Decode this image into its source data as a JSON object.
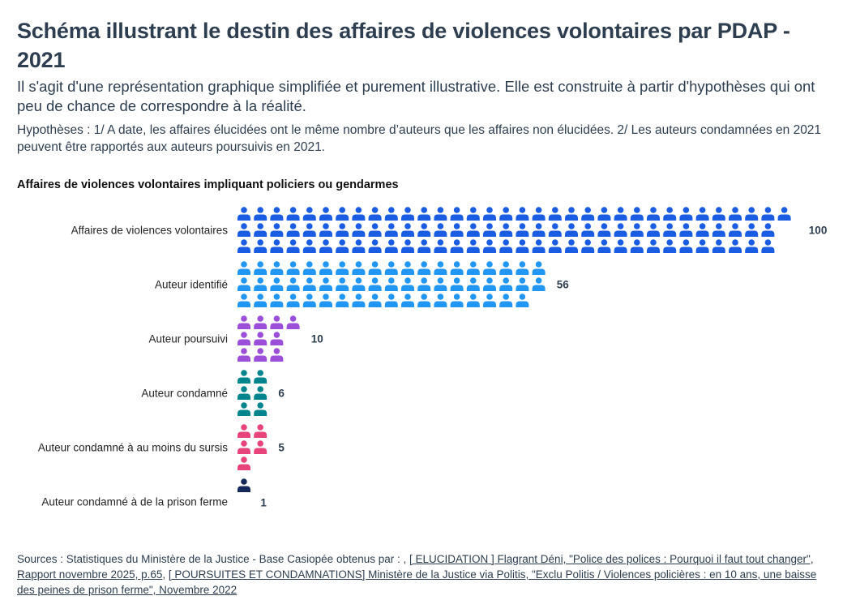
{
  "header": {
    "title": "Schéma illustrant le destin des affaires de violences volontaires par PDAP - 2021",
    "subtitle": "Il s'agit d'une représentation graphique simplifiée et purement illustrative. Elle est construite à partir d'hypothèses qui ont peu de chance de correspondre à la réalité.",
    "hypotheses": "Hypothèses  : 1/ A date, les affaires élucidées ont le même nombre d’auteurs que les affaires non élucidées. 2/ Les auteurs condamnées en 2021 peuvent être rapportés aux auteurs poursuivis en 2021."
  },
  "chart_data": {
    "type": "pictogram",
    "title": "Affaires de violences volontaires impliquant policiers ou gendarmes",
    "icon": "person-icon",
    "icons_per_column": 3,
    "categories": [
      "Affaires de violences volontaires",
      "Auteur identifié",
      "Auteur poursuivi",
      "Auteur condamné",
      "Auteur condamné à au moins du sursis",
      "Auteur condamné à de la prison ferme"
    ],
    "values": [
      100,
      56,
      10,
      6,
      5,
      1
    ],
    "colors": [
      "#1a5de3",
      "#2196f3",
      "#9b4fd8",
      "#00858f",
      "#e6447a",
      "#14285a"
    ]
  },
  "footer": {
    "prefix": "Sources : Statistiques du Ministère de la Justice - Base Casiopée obtenus par : , ",
    "link1": "[ ELUCIDATION ] Flagrant Déni, \"Police des polices : Pourquoi il faut tout changer\", Rapport novembre 2025, p.65",
    "separator": ", ",
    "link2": "[ POURSUITES ET CONDAMNATIONS] Ministère de la Justice via Politis, \"Exclu Politis / Violences policières : en 10 ans, une baisse des peines de prison ferme\", Novembre 2022"
  }
}
